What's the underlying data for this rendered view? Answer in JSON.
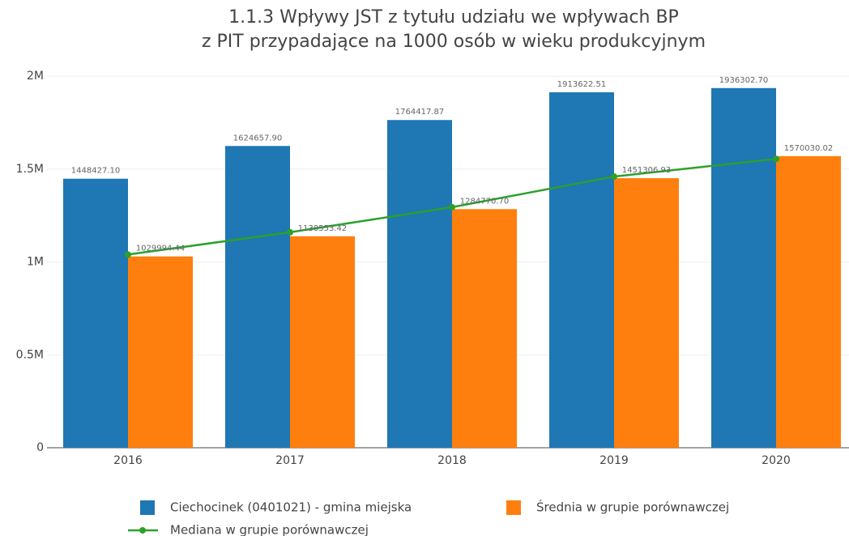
{
  "chart_data": {
    "type": "bar",
    "title": [
      "1.1.3 Wpływy JST z tytułu udziału we wpływach BP",
      "z PIT przypadające na 1000 osób w wieku produkcyjnym"
    ],
    "categories": [
      "2016",
      "2017",
      "2018",
      "2019",
      "2020"
    ],
    "series": [
      {
        "name": "Ciechocinek (0401021) - gmina miejska",
        "color": "#1f77b4",
        "type": "bar",
        "values": [
          1448427.1,
          1624657.9,
          1764417.87,
          1913622.51,
          1936302.7
        ],
        "value_labels": [
          "1448427.10",
          "1624657.90",
          "1764417.87",
          "1913622.51",
          "1936302.70"
        ]
      },
      {
        "name": "Średnia w grupie porównawczej",
        "color": "#ff7f0e",
        "type": "bar",
        "values": [
          1029994.44,
          1138553.42,
          1284770.7,
          1451306.93,
          1570030.02
        ],
        "value_labels": [
          "1029994.44",
          "1138553.42",
          "1284770.70",
          "1451306.93",
          "1570030.02"
        ]
      },
      {
        "name": "Mediana w grupie porównawczej",
        "color": "#2ca02c",
        "type": "line",
        "values": [
          1040000,
          1160000,
          1295000,
          1460000,
          1555000
        ]
      }
    ],
    "ylim": [
      0,
      2040000
    ],
    "yticks": [
      0,
      {
        "value": 500000,
        "label": "0.5M"
      },
      {
        "value": 1000000,
        "label": "1M"
      },
      {
        "value": 1500000,
        "label": "1.5M"
      },
      {
        "value": 2000000,
        "label": "2M"
      }
    ],
    "grid": true
  }
}
